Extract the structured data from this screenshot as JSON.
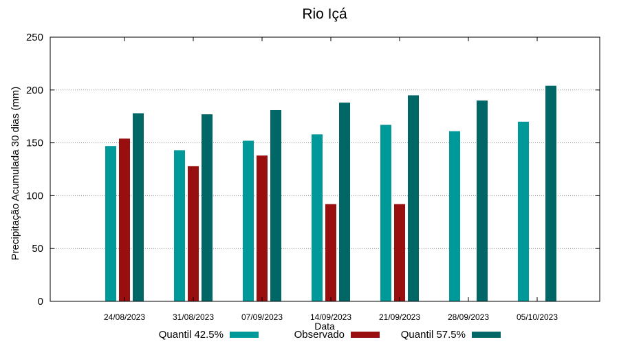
{
  "chart_data": {
    "type": "bar",
    "title": "Rio Içá",
    "xlabel": "Data",
    "ylabel": "Precipitação Acumulada 30 dias (mm)",
    "ylim": [
      0,
      250
    ],
    "yticks": [
      0,
      50,
      100,
      150,
      200,
      250
    ],
    "grid": true,
    "legend_position": "bottom",
    "categories": [
      "24/08/2023",
      "31/08/2023",
      "07/09/2023",
      "14/09/2023",
      "21/09/2023",
      "28/09/2023",
      "05/10/2023"
    ],
    "series": [
      {
        "name": "Quantil 42.5%",
        "color": "#009999",
        "values": [
          147,
          143,
          152,
          158,
          167,
          161,
          170
        ]
      },
      {
        "name": "Observado",
        "color": "#990F0F",
        "values": [
          154,
          128,
          138,
          92,
          92,
          null,
          null
        ]
      },
      {
        "name": "Quantil 57.5%",
        "color": "#006666",
        "values": [
          178,
          177,
          181,
          188,
          195,
          190,
          204
        ]
      }
    ]
  }
}
